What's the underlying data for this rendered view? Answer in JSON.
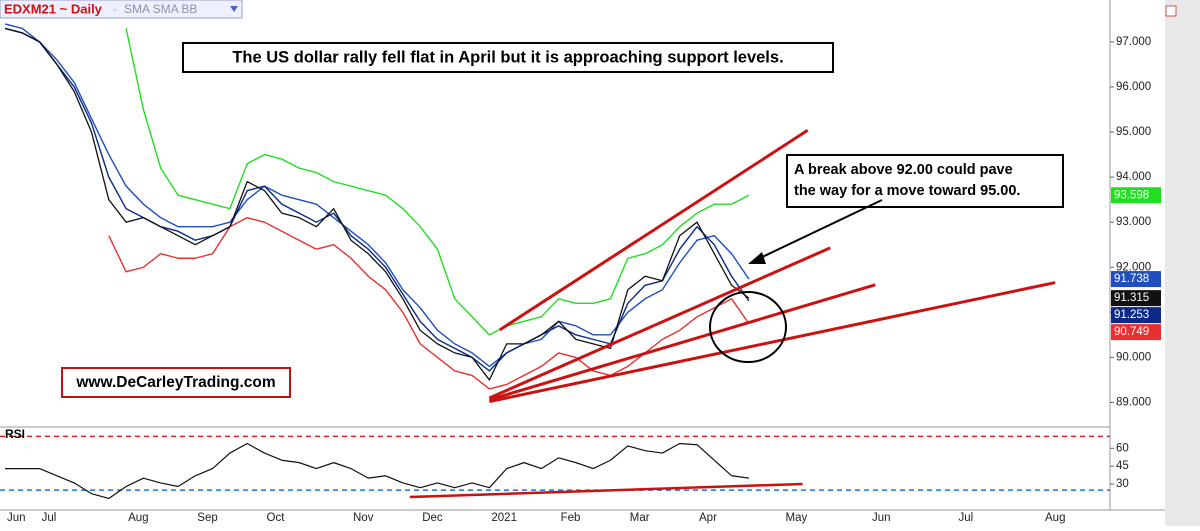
{
  "chart_data": [
    {
      "type": "line",
      "title": "EDXM21 ~ Daily",
      "subtitle": "SMA SMA BB",
      "headline": "The US dollar rally fell flat in April but it is approaching support levels.",
      "callout_lines": [
        "A break above 92.00 could pave",
        "the way for a move toward 95.00."
      ],
      "website": "www.DeCarleyTrading.com",
      "categories": [
        "Jun",
        null,
        "Jul",
        null,
        null,
        null,
        null,
        "Aug",
        null,
        null,
        null,
        "Sep",
        null,
        null,
        null,
        "Oct",
        null,
        null,
        null,
        null,
        "Nov",
        null,
        null,
        null,
        "Dec",
        null,
        null,
        null,
        "2021",
        null,
        null,
        null,
        "Feb",
        null,
        null,
        null,
        "Mar",
        null,
        null,
        null,
        "Apr",
        null,
        null,
        null,
        null,
        "May",
        null,
        null,
        null,
        null,
        "Jun",
        null,
        null,
        null,
        null,
        "Jul",
        null,
        null,
        null,
        null,
        "Aug",
        null,
        null,
        null
      ],
      "ylim": [
        88.5,
        97.93
      ],
      "yticks": [
        {
          "value": 89,
          "label": "89.000"
        },
        {
          "value": 90,
          "label": "90.000"
        },
        {
          "value": 91,
          "label": "91.000"
        },
        {
          "value": 92,
          "label": "92.000"
        },
        {
          "value": 93,
          "label": "93.000"
        },
        {
          "value": 94,
          "label": "94.000"
        },
        {
          "value": 95,
          "label": "95.000"
        },
        {
          "value": 96,
          "label": "96.000"
        },
        {
          "value": 97,
          "label": "97.000"
        }
      ],
      "series": [
        {
          "color": "#22dd22",
          "values": [
            null,
            null,
            null,
            null,
            null,
            null,
            null,
            97.3,
            95.5,
            94.2,
            93.6,
            93.5,
            93.4,
            93.3,
            94.3,
            94.5,
            94.4,
            94.2,
            94.1,
            93.9,
            93.8,
            93.7,
            93.6,
            93.3,
            92.9,
            92.4,
            91.3,
            90.9,
            90.5,
            90.7,
            90.8,
            90.9,
            91.3,
            91.2,
            91.2,
            91.3,
            92.2,
            92.3,
            92.5,
            92.9,
            93.2,
            93.4,
            93.4,
            93.598,
            null,
            null,
            null,
            null,
            null,
            null,
            null,
            null,
            null,
            null,
            null,
            null,
            null,
            null,
            null,
            null,
            null,
            null,
            null,
            null
          ]
        },
        {
          "color": "#e83030",
          "values": [
            null,
            null,
            null,
            null,
            null,
            null,
            92.7,
            91.9,
            92.0,
            92.3,
            92.2,
            92.2,
            92.3,
            92.9,
            93.1,
            93.0,
            92.8,
            92.6,
            92.4,
            92.5,
            92.2,
            91.8,
            91.5,
            91.0,
            90.3,
            90.0,
            89.7,
            89.6,
            89.3,
            89.4,
            89.6,
            89.8,
            90.1,
            90.0,
            89.7,
            89.6,
            89.8,
            90.1,
            90.4,
            90.6,
            90.9,
            91.1,
            91.3,
            90.749,
            null,
            null,
            null,
            null,
            null,
            null,
            null,
            null,
            null,
            null,
            null,
            null,
            null,
            null,
            null,
            null,
            null,
            null,
            null,
            null
          ]
        },
        {
          "color": "#1f4fbf",
          "values": [
            97.4,
            97.3,
            97.0,
            96.6,
            96.1,
            95.3,
            94.5,
            93.8,
            93.4,
            93.1,
            92.9,
            92.9,
            92.9,
            93.0,
            93.5,
            93.8,
            93.6,
            93.5,
            93.4,
            93.1,
            92.8,
            92.5,
            92.1,
            91.5,
            91.1,
            90.6,
            90.3,
            90.1,
            89.8,
            90.1,
            90.3,
            90.4,
            90.8,
            90.7,
            90.5,
            90.5,
            91.0,
            91.3,
            91.5,
            92.1,
            92.6,
            92.7,
            92.3,
            91.738,
            null,
            null,
            null,
            null,
            null,
            null,
            null,
            null,
            null,
            null,
            null,
            null,
            null,
            null,
            null,
            null,
            null,
            null,
            null,
            null
          ]
        },
        {
          "color": "#0a2a8a",
          "values": [
            97.3,
            97.2,
            97.0,
            96.5,
            96.0,
            95.2,
            94.0,
            93.3,
            93.1,
            92.9,
            92.8,
            92.6,
            92.7,
            92.9,
            93.7,
            93.8,
            93.4,
            93.2,
            93.0,
            93.2,
            92.7,
            92.4,
            92.0,
            91.4,
            90.8,
            90.4,
            90.2,
            90.0,
            89.7,
            90.1,
            90.3,
            90.5,
            90.7,
            90.5,
            90.4,
            90.3,
            91.2,
            91.6,
            91.7,
            92.4,
            92.9,
            92.5,
            91.8,
            91.253,
            null,
            null,
            null,
            null,
            null,
            null,
            null,
            null,
            null,
            null,
            null,
            null,
            null,
            null,
            null,
            null,
            null,
            null,
            null,
            null
          ]
        },
        {
          "color": "#111111",
          "values": [
            97.3,
            97.2,
            97.0,
            96.5,
            95.9,
            95.0,
            93.5,
            93.0,
            93.1,
            92.9,
            92.7,
            92.5,
            92.7,
            92.9,
            93.9,
            93.7,
            93.2,
            93.1,
            92.9,
            93.3,
            92.6,
            92.3,
            91.9,
            91.3,
            90.6,
            90.3,
            90.1,
            90.0,
            89.5,
            90.3,
            90.3,
            90.5,
            90.8,
            90.4,
            90.3,
            90.2,
            91.5,
            91.8,
            91.7,
            92.7,
            93.0,
            92.3,
            91.6,
            91.315,
            null,
            null,
            null,
            null,
            null,
            null,
            null,
            null,
            null,
            null,
            null,
            null,
            null,
            null,
            null,
            null,
            null,
            null,
            null,
            null
          ]
        }
      ],
      "trendlines": [
        {
          "x": [
            28.6,
            46.4
          ],
          "y": [
            90.61,
            95.04
          ]
        },
        {
          "x": [
            28.0,
            47.7
          ],
          "y": [
            89.1,
            92.43
          ]
        },
        {
          "x": [
            28.0,
            50.3
          ],
          "y": [
            89.06,
            91.61
          ]
        },
        {
          "x": [
            28.0,
            60.7
          ],
          "y": [
            89.02,
            91.66
          ]
        }
      ],
      "trendline_color": "#cc1111"
    },
    {
      "type": "line",
      "title": "RSI",
      "color": "#111111",
      "values": [
        43,
        43,
        43,
        37,
        31,
        22,
        18,
        28,
        35,
        31,
        28,
        37,
        43,
        56,
        64,
        56,
        50,
        48,
        43,
        48,
        43,
        35,
        37,
        31,
        27,
        31,
        27,
        31,
        27,
        43,
        48,
        43,
        52,
        48,
        43,
        50,
        62,
        58,
        56,
        64,
        63,
        50,
        37,
        35,
        null,
        null,
        null,
        null,
        null,
        null,
        null,
        null,
        null,
        null,
        null,
        null,
        null,
        null,
        null,
        null,
        null,
        null,
        null,
        null
      ],
      "ylim": [
        10,
        77
      ],
      "yticks": [
        30,
        45,
        60
      ],
      "levels": [
        {
          "value": 70,
          "color": "#e02020"
        },
        {
          "value": 25,
          "color": "#1e6fd9"
        }
      ],
      "trendline": {
        "x": [
          23.4,
          46.1
        ],
        "y": [
          19.2,
          30.1
        ]
      }
    }
  ]
}
